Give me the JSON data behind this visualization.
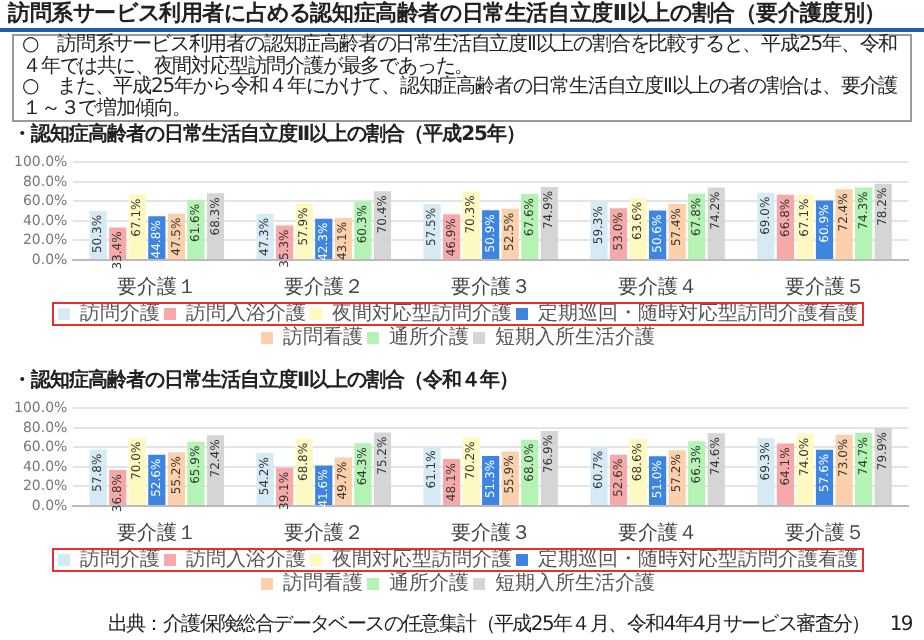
{
  "chart_data": [
    {
      "type": "bar",
      "title": "訪問系サービス利用者に占める認知症高齢者の日常生活自立度Ⅱ以上の割合（要介護度別）",
      "subtitle": "・認知症高齢者の日常生活自立度Ⅱ以上の割合（平成25年）",
      "annotations": [
        "○　訪問系サービス利用者の認知症高齢者の日常生活自立度Ⅱ以上の割合を比較すると、平成25年、令和４年では共に、夜間対応型訪問介護が最多であった。",
        "○　また、平成25年から令和４年にかけて、認知症高齢者の日常生活自立度Ⅱ以上の者の割合は、要介護１～３で増加傾向。"
      ],
      "categories": [
        "要介護１",
        "要介護２",
        "要介護３",
        "要介護４",
        "要介護５"
      ],
      "series": [
        {
          "name": "訪問介護",
          "color": "#d6eaf5",
          "values": [
            50.3,
            47.3,
            57.5,
            59.3,
            69.0
          ],
          "value_labels": [
            "50.3%",
            "47.3%",
            "57.5%",
            "59.3%",
            "69.0%"
          ]
        },
        {
          "name": "訪問入浴介護",
          "color": "#f7a9a9",
          "values": [
            33.4,
            35.3,
            46.9,
            53.0,
            66.8
          ],
          "value_labels": [
            "33.4%",
            "35.3%",
            "46.9%",
            "53.0%",
            "66.8%"
          ]
        },
        {
          "name": "夜間対応型訪問介護",
          "color": "#fdf9c0",
          "values": [
            67.1,
            57.9,
            70.3,
            63.6,
            67.1
          ],
          "value_labels": [
            "67.1%",
            "57.9%",
            "70.3%",
            "63.6%",
            "67.1%"
          ]
        },
        {
          "name": "定期巡回・随時対応型訪問介護看護",
          "color": "#3d85e0",
          "values": [
            44.8,
            42.3,
            50.9,
            50.6,
            60.9
          ],
          "value_labels": [
            "44.8%",
            "42.3%",
            "50.9%",
            "50.6%",
            "60.9%"
          ]
        },
        {
          "name": "訪問看護",
          "color": "#fbd0aa",
          "values": [
            47.5,
            43.1,
            52.5,
            57.4,
            72.4
          ],
          "value_labels": [
            "47.5%",
            "43.1%",
            "52.5%",
            "57.4%",
            "72.4%"
          ]
        },
        {
          "name": "通所介護",
          "color": "#b3f3b3",
          "values": [
            61.6,
            60.3,
            67.6,
            67.8,
            74.3
          ],
          "value_labels": [
            "61.6%",
            "60.3%",
            "67.6%",
            "67.8%",
            "74.3%"
          ]
        },
        {
          "name": "短期入所生活介護",
          "color": "#d5d5d5",
          "values": [
            68.3,
            70.4,
            74.9,
            74.2,
            78.2
          ],
          "value_labels": [
            "68.3%",
            "70.4%",
            "74.9%",
            "74.2%",
            "78.2%"
          ]
        }
      ],
      "ylim": [
        0,
        100
      ],
      "yticks": [
        {
          "value": 0,
          "label": "0.0%"
        },
        {
          "value": 20,
          "label": "20.0%"
        },
        {
          "value": 40,
          "label": "40.0%"
        },
        {
          "value": 60,
          "label": "60.0%"
        },
        {
          "value": 80,
          "label": "80.0%"
        },
        {
          "value": 100,
          "label": "100.0%"
        }
      ],
      "grid": "y",
      "legend": "bottom"
    },
    {
      "type": "bar",
      "title": "・認知症高齢者の日常生活自立度Ⅱ以上の割合（令和４年）",
      "annotations": [
        "出典：介護保険総合データベースの任意集計（平成25年４月、令和4年4月サービス審査分）",
        "19"
      ],
      "categories": [
        "要介護１",
        "要介護２",
        "要介護３",
        "要介護４",
        "要介護５"
      ],
      "series": [
        {
          "name": "訪問介護",
          "color": "#d6eaf5",
          "values": [
            57.8,
            54.2,
            61.1,
            60.7,
            69.3
          ],
          "value_labels": [
            "57.8%",
            "54.2%",
            "61.1%",
            "60.7%",
            "69.3%"
          ]
        },
        {
          "name": "訪問入浴介護",
          "color": "#f7a9a9",
          "values": [
            36.8,
            39.1,
            48.1,
            52.6,
            64.1
          ],
          "value_labels": [
            "36.8%",
            "39.1%",
            "48.1%",
            "52.6%",
            "64.1%"
          ]
        },
        {
          "name": "夜間対応型訪問介護",
          "color": "#fdf9c0",
          "values": [
            70.0,
            68.8,
            70.2,
            68.6,
            74.0
          ],
          "value_labels": [
            "70.0%",
            "68.8%",
            "70.2%",
            "68.6%",
            "74.0%"
          ]
        },
        {
          "name": "定期巡回・随時対応型訪問介護看護",
          "color": "#3d85e0",
          "values": [
            52.6,
            41.6,
            51.3,
            51.0,
            57.6
          ],
          "value_labels": [
            "52.6%",
            "41.6%",
            "51.3%",
            "51.0%",
            "57.6%"
          ]
        },
        {
          "name": "訪問看護",
          "color": "#fbd0aa",
          "values": [
            55.2,
            49.7,
            55.9,
            57.2,
            73.0
          ],
          "value_labels": [
            "55.2%",
            "49.7%",
            "55.9%",
            "57.2%",
            "73.0%"
          ]
        },
        {
          "name": "通所介護",
          "color": "#b3f3b3",
          "values": [
            65.9,
            64.3,
            68.0,
            66.3,
            74.7
          ],
          "value_labels": [
            "65.9%",
            "64.3%",
            "68.0%",
            "66.3%",
            "74.7%"
          ]
        },
        {
          "name": "短期入所生活介護",
          "color": "#d5d5d5",
          "values": [
            72.4,
            75.2,
            76.9,
            74.6,
            79.9
          ],
          "value_labels": [
            "72.4%",
            "75.2%",
            "76.9%",
            "74.6%",
            "79.9%"
          ]
        }
      ],
      "ylim": [
        0,
        100
      ],
      "yticks": [
        {
          "value": 0,
          "label": "0.0%"
        },
        {
          "value": 20,
          "label": "20.0%"
        },
        {
          "value": 40,
          "label": "40.0%"
        },
        {
          "value": 60,
          "label": "60.0%"
        },
        {
          "value": 80,
          "label": "80.0%"
        },
        {
          "value": 100,
          "label": "100.0%"
        }
      ],
      "grid": "y",
      "legend": "bottom"
    }
  ]
}
